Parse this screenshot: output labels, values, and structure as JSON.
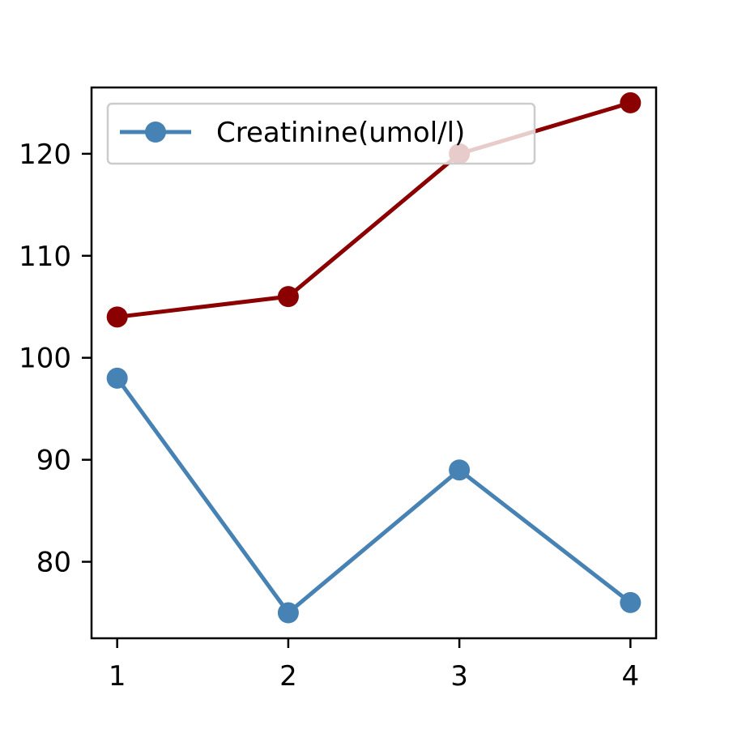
{
  "chart_data": {
    "type": "line",
    "x": [
      1,
      2,
      3,
      4
    ],
    "xlim": [
      0.85,
      4.15
    ],
    "ylim": [
      72.5,
      126.5
    ],
    "xticks": [
      1,
      2,
      3,
      4
    ],
    "yticks": [
      80,
      90,
      100,
      110,
      120
    ],
    "grid": false,
    "legend_placement": "upper-left",
    "series": [
      {
        "name": "Creatinine(umol/l)",
        "values": [
          98,
          75,
          89,
          76
        ],
        "color": "#4682b4",
        "legend": true
      },
      {
        "values": [
          104,
          106,
          120,
          125
        ],
        "color": "#8b0000",
        "legend": false
      }
    ]
  }
}
